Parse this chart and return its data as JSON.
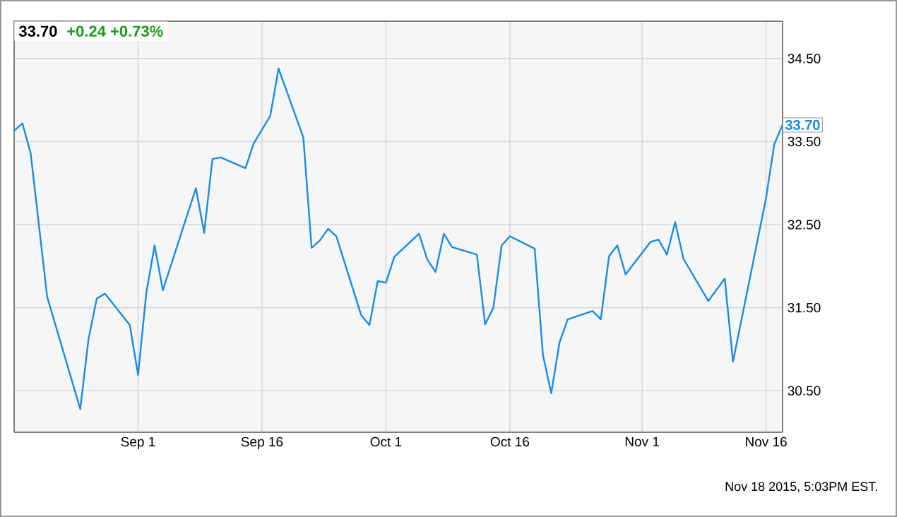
{
  "chart_data": {
    "type": "line",
    "title": "33.70",
    "subtitle": "+0.24  +0.73%",
    "x": [
      "2015-08-17",
      "2015-08-18",
      "2015-08-19",
      "2015-08-21",
      "2015-08-25",
      "2015-08-26",
      "2015-08-27",
      "2015-08-28",
      "2015-08-31",
      "2015-09-01",
      "2015-09-02",
      "2015-09-03",
      "2015-09-04",
      "2015-09-08",
      "2015-09-09",
      "2015-09-10",
      "2015-09-11",
      "2015-09-14",
      "2015-09-15",
      "2015-09-17",
      "2015-09-18",
      "2015-09-21",
      "2015-09-22",
      "2015-09-23",
      "2015-09-24",
      "2015-09-25",
      "2015-09-28",
      "2015-09-29",
      "2015-09-30",
      "2015-10-01",
      "2015-10-02",
      "2015-10-05",
      "2015-10-06",
      "2015-10-07",
      "2015-10-08",
      "2015-10-09",
      "2015-10-12",
      "2015-10-13",
      "2015-10-14",
      "2015-10-15",
      "2015-10-16",
      "2015-10-19",
      "2015-10-20",
      "2015-10-21",
      "2015-10-22",
      "2015-10-23",
      "2015-10-26",
      "2015-10-27",
      "2015-10-28",
      "2015-10-29",
      "2015-10-30",
      "2015-11-02",
      "2015-11-03",
      "2015-11-04",
      "2015-11-05",
      "2015-11-06",
      "2015-11-09",
      "2015-11-11",
      "2015-11-12",
      "2015-11-16",
      "2015-11-17",
      "2015-11-18"
    ],
    "series": [
      {
        "color": "#1a8ce6",
        "values": [
          33.63,
          33.72,
          33.36,
          31.63,
          30.28,
          31.12,
          31.61,
          31.67,
          31.29,
          30.69,
          31.68,
          32.25,
          31.71,
          32.94,
          32.4,
          33.29,
          33.31,
          33.18,
          33.48,
          33.81,
          34.38,
          33.55,
          32.22,
          32.31,
          32.45,
          32.36,
          31.41,
          31.29,
          31.82,
          31.8,
          32.11,
          32.39,
          32.08,
          31.93,
          32.39,
          32.23,
          32.14,
          31.3,
          31.5,
          32.25,
          32.36,
          32.21,
          30.93,
          30.47,
          31.08,
          31.36,
          31.46,
          31.36,
          32.12,
          32.25,
          31.9,
          32.29,
          32.32,
          32.14,
          32.53,
          32.09,
          31.58,
          31.85,
          30.85,
          32.82,
          33.47,
          33.7
        ]
      }
    ],
    "xlim": [
      "2015-08-17",
      "2015-11-18"
    ],
    "xticks": [
      {
        "value": "2015-09-01",
        "label": "Sep 1"
      },
      {
        "value": "2015-09-16",
        "label": "Sep 16"
      },
      {
        "value": "2015-10-01",
        "label": "Oct 1"
      },
      {
        "value": "2015-10-16",
        "label": "Oct 16"
      },
      {
        "value": "2015-11-01",
        "label": "Nov 1"
      },
      {
        "value": "2015-11-16",
        "label": "Nov 16"
      }
    ],
    "ylim": [
      30.0,
      34.95
    ],
    "yticks": [
      {
        "value": 30.5,
        "label": "30.50"
      },
      {
        "value": 31.5,
        "label": "31.50"
      },
      {
        "value": 32.5,
        "label": "32.50"
      },
      {
        "value": 33.5,
        "label": "33.50"
      },
      {
        "value": 34.5,
        "label": "34.50"
      }
    ],
    "grid": true,
    "annotations": [
      {
        "text": "33.70",
        "x": "2015-11-18",
        "y": 33.7
      },
      "Nov 18 2015, 5:03PM EST."
    ]
  }
}
